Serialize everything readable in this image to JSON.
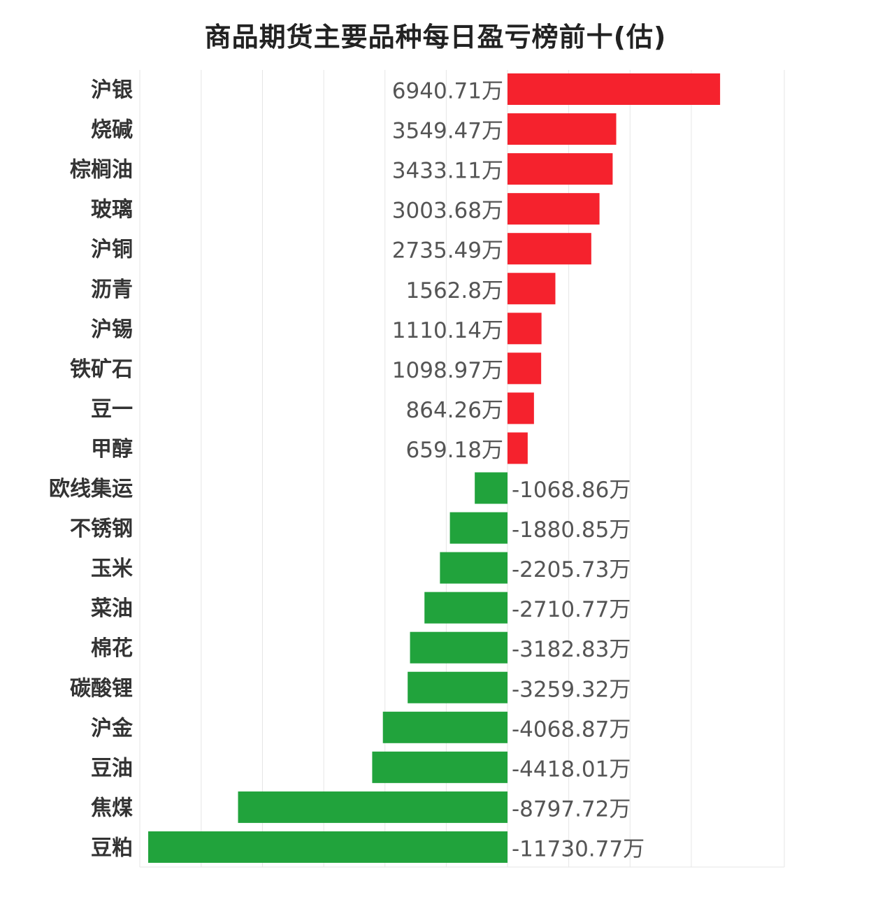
{
  "chart_data": {
    "type": "bar",
    "orientation": "horizontal",
    "title": "商品期货主要品种每日盈亏榜前十(估)",
    "unit_suffix": "万",
    "categories": [
      "沪银",
      "烧碱",
      "棕榈油",
      "玻璃",
      "沪铜",
      "沥青",
      "沪锡",
      "铁矿石",
      "豆一",
      "甲醇",
      "欧线集运",
      "不锈钢",
      "玉米",
      "菜油",
      "棉花",
      "碳酸锂",
      "沪金",
      "豆油",
      "焦煤",
      "豆粕"
    ],
    "values": [
      6940.71,
      3549.47,
      3433.11,
      3003.68,
      2735.49,
      1562.8,
      1110.14,
      1098.97,
      864.26,
      659.18,
      -1068.86,
      -1880.85,
      -2205.73,
      -2710.77,
      -3182.83,
      -3259.32,
      -4068.87,
      -4418.01,
      -8797.72,
      -11730.77
    ],
    "value_labels": [
      "6940.71万",
      "3549.47万",
      "3433.11万",
      "3003.68万",
      "2735.49万",
      "1562.8万",
      "1110.14万",
      "1098.97万",
      "864.26万",
      "659.18万",
      "-1068.86万",
      "-1880.85万",
      "-2205.73万",
      "-2710.77万",
      "-3182.83万",
      "-3259.32万",
      "-4068.87万",
      "-4418.01万",
      "-8797.72万",
      "-11730.77万"
    ],
    "positive_color": "#f5222d",
    "negative_color": "#21a33c",
    "grid": true,
    "xlim": [
      -12000,
      9000
    ],
    "legend": "none"
  }
}
